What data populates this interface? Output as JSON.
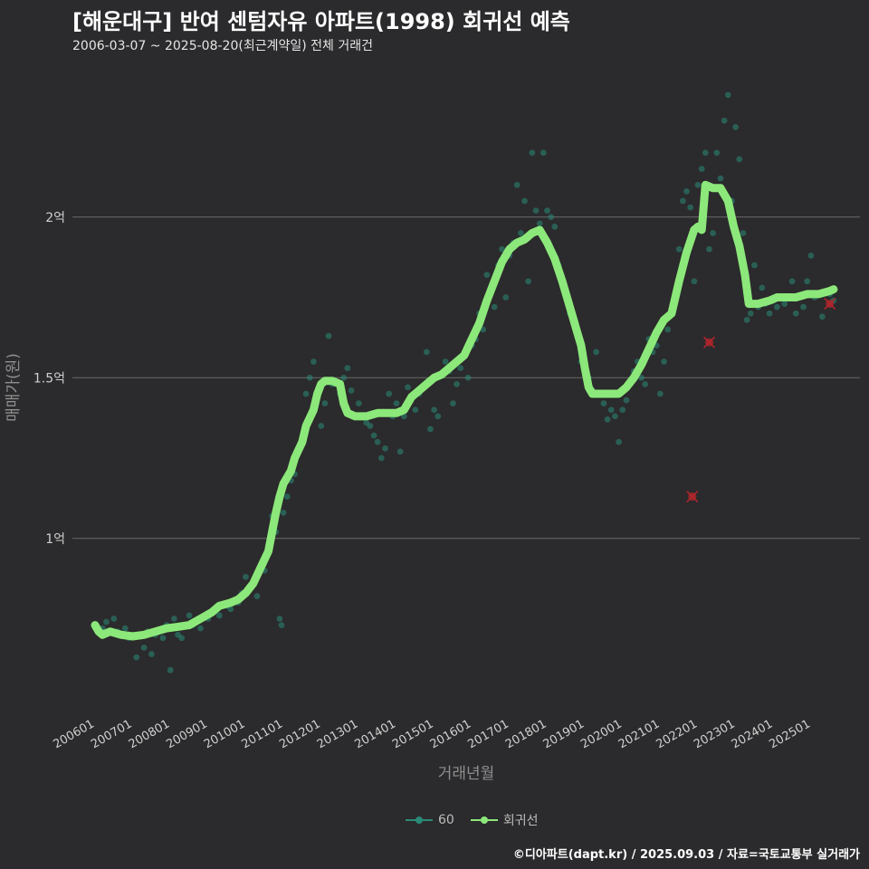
{
  "header": {
    "title": "[해운대구] 반여 센텀자유 아파트(1998) 회귀선 예측",
    "subtitle": "2006-03-07 ~ 2025-08-20(최근계약일) 전체 거래건"
  },
  "caption": "©디아파트(dapt.kr) / 2025.09.03 / 자료=국토교통부 실거래가",
  "colors": {
    "background": "#2b2a2c",
    "grid": "#6a6a6a",
    "scatter": "#2a8a78",
    "regression": "#8ce87a",
    "outlier": "#b3262c"
  },
  "legend": [
    {
      "label": "60",
      "color": "#2a8a78"
    },
    {
      "label": "회귀선",
      "color": "#8ce87a"
    }
  ],
  "chart_data": {
    "type": "scatter",
    "xlabel": "거래년월",
    "ylabel": "매매가(원)",
    "xlim": [
      2005.4,
      2026.3
    ],
    "ylim": [
      0.45,
      2.45
    ],
    "x_ticks": [
      {
        "value": 2006.0,
        "label": "200601"
      },
      {
        "value": 2007.0,
        "label": "200701"
      },
      {
        "value": 2008.0,
        "label": "200801"
      },
      {
        "value": 2009.0,
        "label": "200901"
      },
      {
        "value": 2010.0,
        "label": "201001"
      },
      {
        "value": 2011.0,
        "label": "201101"
      },
      {
        "value": 2012.0,
        "label": "201201"
      },
      {
        "value": 2013.0,
        "label": "201301"
      },
      {
        "value": 2014.0,
        "label": "201401"
      },
      {
        "value": 2015.0,
        "label": "201501"
      },
      {
        "value": 2016.0,
        "label": "201601"
      },
      {
        "value": 2017.0,
        "label": "201701"
      },
      {
        "value": 2018.0,
        "label": "201801"
      },
      {
        "value": 2019.0,
        "label": "201901"
      },
      {
        "value": 2020.0,
        "label": "202001"
      },
      {
        "value": 2021.0,
        "label": "202101"
      },
      {
        "value": 2022.0,
        "label": "202201"
      },
      {
        "value": 2023.0,
        "label": "202301"
      },
      {
        "value": 2024.0,
        "label": "202401"
      },
      {
        "value": 2025.0,
        "label": "202501"
      }
    ],
    "y_ticks": [
      {
        "value": 1.0,
        "label": "1억"
      },
      {
        "value": 1.5,
        "label": "1.5억"
      },
      {
        "value": 2.0,
        "label": "2억"
      }
    ],
    "series": [
      {
        "name": "60",
        "kind": "points",
        "points": [
          [
            2006.2,
            0.72
          ],
          [
            2006.3,
            0.74
          ],
          [
            2006.5,
            0.75
          ],
          [
            2006.6,
            0.71
          ],
          [
            2006.8,
            0.72
          ],
          [
            2006.9,
            0.69
          ],
          [
            2007.0,
            0.7
          ],
          [
            2007.1,
            0.63
          ],
          [
            2007.3,
            0.66
          ],
          [
            2007.4,
            0.71
          ],
          [
            2007.5,
            0.64
          ],
          [
            2007.6,
            0.7
          ],
          [
            2007.8,
            0.69
          ],
          [
            2007.9,
            0.73
          ],
          [
            2008.0,
            0.59
          ],
          [
            2008.1,
            0.75
          ],
          [
            2008.2,
            0.7
          ],
          [
            2008.3,
            0.69
          ],
          [
            2008.5,
            0.76
          ],
          [
            2008.6,
            0.73
          ],
          [
            2008.8,
            0.72
          ],
          [
            2009.0,
            0.75
          ],
          [
            2009.1,
            0.77
          ],
          [
            2009.3,
            0.76
          ],
          [
            2009.5,
            0.79
          ],
          [
            2009.6,
            0.78
          ],
          [
            2009.8,
            0.8
          ],
          [
            2009.9,
            0.83
          ],
          [
            2010.0,
            0.88
          ],
          [
            2010.1,
            0.85
          ],
          [
            2010.3,
            0.82
          ],
          [
            2010.5,
            0.9
          ],
          [
            2010.6,
            0.97
          ],
          [
            2010.7,
            1.07
          ],
          [
            2010.8,
            1.02
          ],
          [
            2010.9,
            0.75
          ],
          [
            2010.95,
            0.73
          ],
          [
            2011.0,
            1.08
          ],
          [
            2011.1,
            1.13
          ],
          [
            2011.2,
            1.18
          ],
          [
            2011.3,
            1.2
          ],
          [
            2011.4,
            1.28
          ],
          [
            2011.5,
            1.3
          ],
          [
            2011.6,
            1.45
          ],
          [
            2011.7,
            1.5
          ],
          [
            2011.8,
            1.55
          ],
          [
            2011.9,
            1.45
          ],
          [
            2012.0,
            1.35
          ],
          [
            2012.1,
            1.42
          ],
          [
            2012.2,
            1.63
          ],
          [
            2012.3,
            1.48
          ],
          [
            2012.5,
            1.45
          ],
          [
            2012.6,
            1.5
          ],
          [
            2012.7,
            1.53
          ],
          [
            2012.8,
            1.46
          ],
          [
            2013.0,
            1.42
          ],
          [
            2013.1,
            1.38
          ],
          [
            2013.2,
            1.36
          ],
          [
            2013.3,
            1.35
          ],
          [
            2013.4,
            1.32
          ],
          [
            2013.5,
            1.3
          ],
          [
            2013.6,
            1.25
          ],
          [
            2013.7,
            1.28
          ],
          [
            2013.8,
            1.45
          ],
          [
            2013.9,
            1.38
          ],
          [
            2014.0,
            1.42
          ],
          [
            2014.1,
            1.27
          ],
          [
            2014.2,
            1.38
          ],
          [
            2014.3,
            1.47
          ],
          [
            2014.5,
            1.4
          ],
          [
            2014.6,
            1.45
          ],
          [
            2014.8,
            1.58
          ],
          [
            2014.9,
            1.34
          ],
          [
            2015.0,
            1.4
          ],
          [
            2015.1,
            1.38
          ],
          [
            2015.3,
            1.55
          ],
          [
            2015.4,
            1.52
          ],
          [
            2015.5,
            1.42
          ],
          [
            2015.6,
            1.48
          ],
          [
            2015.7,
            1.53
          ],
          [
            2015.8,
            1.57
          ],
          [
            2015.9,
            1.5
          ],
          [
            2016.0,
            1.6
          ],
          [
            2016.1,
            1.62
          ],
          [
            2016.2,
            1.7
          ],
          [
            2016.3,
            1.65
          ],
          [
            2016.4,
            1.82
          ],
          [
            2016.5,
            1.78
          ],
          [
            2016.6,
            1.72
          ],
          [
            2016.7,
            1.85
          ],
          [
            2016.8,
            1.9
          ],
          [
            2016.9,
            1.75
          ],
          [
            2017.0,
            1.88
          ],
          [
            2017.1,
            1.92
          ],
          [
            2017.2,
            2.1
          ],
          [
            2017.3,
            1.95
          ],
          [
            2017.4,
            2.05
          ],
          [
            2017.5,
            1.8
          ],
          [
            2017.6,
            2.2
          ],
          [
            2017.7,
            2.02
          ],
          [
            2017.8,
            1.98
          ],
          [
            2017.9,
            2.2
          ],
          [
            2018.0,
            2.02
          ],
          [
            2018.1,
            2.0
          ],
          [
            2018.2,
            1.97
          ],
          [
            2018.3,
            1.85
          ],
          [
            2018.4,
            1.8
          ],
          [
            2018.5,
            1.75
          ],
          [
            2018.6,
            1.7
          ],
          [
            2018.7,
            1.68
          ],
          [
            2018.8,
            1.65
          ],
          [
            2018.9,
            1.55
          ],
          [
            2019.0,
            1.52
          ],
          [
            2019.1,
            1.5
          ],
          [
            2019.2,
            1.46
          ],
          [
            2019.3,
            1.58
          ],
          [
            2019.4,
            1.45
          ],
          [
            2019.5,
            1.42
          ],
          [
            2019.6,
            1.37
          ],
          [
            2019.7,
            1.4
          ],
          [
            2019.8,
            1.38
          ],
          [
            2019.9,
            1.3
          ],
          [
            2020.0,
            1.4
          ],
          [
            2020.1,
            1.43
          ],
          [
            2020.2,
            1.48
          ],
          [
            2020.3,
            1.52
          ],
          [
            2020.4,
            1.55
          ],
          [
            2020.5,
            1.5
          ],
          [
            2020.6,
            1.48
          ],
          [
            2020.7,
            1.62
          ],
          [
            2020.8,
            1.58
          ],
          [
            2020.9,
            1.6
          ],
          [
            2021.0,
            1.45
          ],
          [
            2021.1,
            1.55
          ],
          [
            2021.2,
            1.65
          ],
          [
            2021.3,
            1.7
          ],
          [
            2021.4,
            1.75
          ],
          [
            2021.5,
            1.9
          ],
          [
            2021.6,
            2.05
          ],
          [
            2021.7,
            2.08
          ],
          [
            2021.8,
            2.03
          ],
          [
            2021.9,
            1.8
          ],
          [
            2022.0,
            2.1
          ],
          [
            2022.1,
            2.15
          ],
          [
            2022.2,
            2.2
          ],
          [
            2022.3,
            1.9
          ],
          [
            2022.4,
            1.95
          ],
          [
            2022.5,
            2.2
          ],
          [
            2022.6,
            2.12
          ],
          [
            2022.7,
            2.3
          ],
          [
            2022.8,
            2.38
          ],
          [
            2022.9,
            2.05
          ],
          [
            2023.0,
            2.28
          ],
          [
            2023.1,
            2.18
          ],
          [
            2023.2,
            1.95
          ],
          [
            2023.3,
            1.68
          ],
          [
            2023.4,
            1.7
          ],
          [
            2023.5,
            1.85
          ],
          [
            2023.6,
            1.72
          ],
          [
            2023.7,
            1.78
          ],
          [
            2023.8,
            1.73
          ],
          [
            2023.9,
            1.7
          ],
          [
            2024.0,
            1.74
          ],
          [
            2024.1,
            1.72
          ],
          [
            2024.2,
            1.75
          ],
          [
            2024.3,
            1.73
          ],
          [
            2024.5,
            1.8
          ],
          [
            2024.6,
            1.7
          ],
          [
            2024.7,
            1.75
          ],
          [
            2024.8,
            1.72
          ],
          [
            2024.9,
            1.8
          ],
          [
            2025.0,
            1.88
          ],
          [
            2025.1,
            1.75
          ],
          [
            2025.3,
            1.69
          ],
          [
            2025.5,
            1.76
          ],
          [
            2025.6,
            1.74
          ]
        ]
      },
      {
        "name": "회귀선",
        "kind": "line",
        "points": [
          [
            2006.0,
            0.73
          ],
          [
            2006.1,
            0.71
          ],
          [
            2006.2,
            0.7
          ],
          [
            2006.4,
            0.71
          ],
          [
            2006.7,
            0.7
          ],
          [
            2007.0,
            0.695
          ],
          [
            2007.3,
            0.7
          ],
          [
            2007.6,
            0.71
          ],
          [
            2007.9,
            0.72
          ],
          [
            2008.2,
            0.725
          ],
          [
            2008.5,
            0.73
          ],
          [
            2008.8,
            0.75
          ],
          [
            2009.1,
            0.77
          ],
          [
            2009.3,
            0.79
          ],
          [
            2009.6,
            0.8
          ],
          [
            2009.8,
            0.81
          ],
          [
            2010.0,
            0.83
          ],
          [
            2010.2,
            0.86
          ],
          [
            2010.4,
            0.91
          ],
          [
            2010.6,
            0.96
          ],
          [
            2010.7,
            1.02
          ],
          [
            2010.8,
            1.08
          ],
          [
            2010.9,
            1.13
          ],
          [
            2011.0,
            1.17
          ],
          [
            2011.2,
            1.21
          ],
          [
            2011.3,
            1.25
          ],
          [
            2011.5,
            1.3
          ],
          [
            2011.6,
            1.35
          ],
          [
            2011.8,
            1.4
          ],
          [
            2011.9,
            1.45
          ],
          [
            2012.0,
            1.48
          ],
          [
            2012.1,
            1.49
          ],
          [
            2012.3,
            1.49
          ],
          [
            2012.5,
            1.48
          ],
          [
            2012.6,
            1.42
          ],
          [
            2012.7,
            1.39
          ],
          [
            2012.9,
            1.38
          ],
          [
            2013.2,
            1.38
          ],
          [
            2013.5,
            1.39
          ],
          [
            2013.8,
            1.39
          ],
          [
            2014.0,
            1.39
          ],
          [
            2014.2,
            1.4
          ],
          [
            2014.4,
            1.44
          ],
          [
            2014.6,
            1.46
          ],
          [
            2014.8,
            1.48
          ],
          [
            2015.0,
            1.5
          ],
          [
            2015.2,
            1.51
          ],
          [
            2015.4,
            1.53
          ],
          [
            2015.6,
            1.55
          ],
          [
            2015.8,
            1.57
          ],
          [
            2016.0,
            1.62
          ],
          [
            2016.2,
            1.67
          ],
          [
            2016.4,
            1.74
          ],
          [
            2016.6,
            1.8
          ],
          [
            2016.8,
            1.86
          ],
          [
            2017.0,
            1.9
          ],
          [
            2017.2,
            1.92
          ],
          [
            2017.4,
            1.93
          ],
          [
            2017.6,
            1.95
          ],
          [
            2017.8,
            1.96
          ],
          [
            2017.9,
            1.94
          ],
          [
            2018.0,
            1.92
          ],
          [
            2018.2,
            1.87
          ],
          [
            2018.4,
            1.8
          ],
          [
            2018.6,
            1.72
          ],
          [
            2018.8,
            1.64
          ],
          [
            2018.9,
            1.6
          ],
          [
            2019.0,
            1.53
          ],
          [
            2019.1,
            1.47
          ],
          [
            2019.2,
            1.45
          ],
          [
            2019.4,
            1.45
          ],
          [
            2019.7,
            1.45
          ],
          [
            2019.9,
            1.45
          ],
          [
            2020.1,
            1.47
          ],
          [
            2020.3,
            1.5
          ],
          [
            2020.5,
            1.54
          ],
          [
            2020.7,
            1.59
          ],
          [
            2020.9,
            1.64
          ],
          [
            2021.1,
            1.68
          ],
          [
            2021.3,
            1.7
          ],
          [
            2021.5,
            1.8
          ],
          [
            2021.7,
            1.89
          ],
          [
            2021.9,
            1.96
          ],
          [
            2022.0,
            1.97
          ],
          [
            2022.1,
            1.96
          ],
          [
            2022.2,
            2.1
          ],
          [
            2022.4,
            2.09
          ],
          [
            2022.6,
            2.09
          ],
          [
            2022.8,
            2.05
          ],
          [
            2022.95,
            1.97
          ],
          [
            2023.1,
            1.91
          ],
          [
            2023.25,
            1.82
          ],
          [
            2023.35,
            1.73
          ],
          [
            2023.6,
            1.73
          ],
          [
            2023.9,
            1.74
          ],
          [
            2024.1,
            1.75
          ],
          [
            2024.3,
            1.75
          ],
          [
            2024.6,
            1.75
          ],
          [
            2024.9,
            1.76
          ],
          [
            2025.2,
            1.76
          ],
          [
            2025.5,
            1.77
          ],
          [
            2025.6,
            1.775
          ]
        ]
      },
      {
        "name": "outliers",
        "kind": "outlier",
        "points": [
          [
            2021.85,
            1.13
          ],
          [
            2022.3,
            1.61
          ],
          [
            2025.5,
            1.73
          ]
        ]
      }
    ]
  }
}
